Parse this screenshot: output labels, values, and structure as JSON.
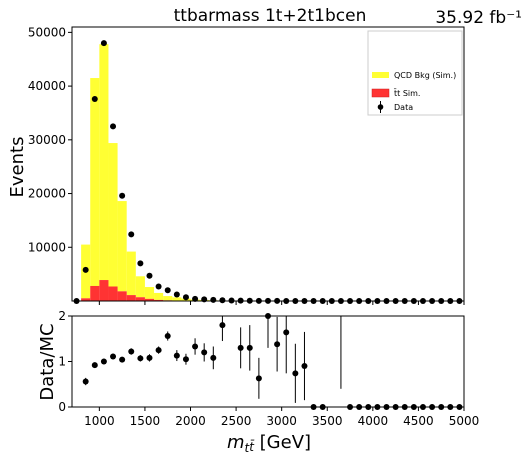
{
  "chart_data": [
    {
      "type": "bar",
      "title": "ttbarmass  1t+2t1bcen",
      "lumi_label": "35.92 fb⁻¹",
      "ylabel": "Events",
      "xlim": [
        700,
        5000
      ],
      "ylim": [
        0,
        51000
      ],
      "yticks": [
        10000,
        20000,
        30000,
        40000,
        50000
      ],
      "bin_edges": [
        700,
        800,
        900,
        1000,
        1100,
        1200,
        1300,
        1400,
        1500,
        1600,
        1700,
        1800,
        1900,
        2000,
        2100,
        2200,
        2300,
        2400,
        2500,
        2600,
        2700,
        2800,
        2900,
        3000,
        3100,
        3200,
        3300,
        3400,
        3500,
        3600,
        3700,
        3800,
        3900,
        4000,
        4100,
        4200,
        4300,
        4400,
        4500,
        4600,
        4700,
        4800,
        4900,
        5000
      ],
      "legend": {
        "placement": "top-right",
        "entries": [
          {
            "label": "QCD Bkg (Sim.)",
            "color": "#ffff33"
          },
          {
            "label": "t̄t Sim.",
            "color": "#ff3333"
          },
          {
            "label": "Data",
            "color": "#000000"
          }
        ]
      },
      "series": [
        {
          "name": "QCD Bkg (Sim.)",
          "color": "#ffff33",
          "values": [
            0,
            10000,
            38700,
            43900,
            26700,
            16800,
            8100,
            3900,
            2200,
            1300,
            800,
            600,
            400,
            250,
            180,
            120,
            80,
            60,
            40,
            30,
            20,
            15,
            10,
            8,
            6,
            5,
            4,
            3,
            3,
            2,
            2,
            1,
            1,
            1,
            1,
            0,
            0,
            0,
            0,
            0,
            0,
            0,
            0
          ]
        },
        {
          "name": "t̄t Sim.",
          "color": "#ff3333",
          "values": [
            0,
            500,
            2800,
            3900,
            2700,
            1800,
            1100,
            700,
            400,
            200,
            120,
            80,
            50,
            30,
            20,
            12,
            8,
            5,
            3,
            2,
            1,
            1,
            1,
            0,
            0,
            0,
            0,
            0,
            0,
            0,
            0,
            0,
            0,
            0,
            0,
            0,
            0,
            0,
            0,
            0,
            0,
            0,
            0
          ]
        },
        {
          "name": "Data",
          "color": "#000000",
          "x": [
            750,
            850,
            950,
            1050,
            1150,
            1250,
            1350,
            1450,
            1550,
            1650,
            1750,
            1850,
            1950,
            2050,
            2150,
            2250,
            2350,
            2450,
            2550,
            2650,
            2750,
            2850,
            2950,
            3050,
            3150,
            3250,
            3350,
            3450,
            3550,
            3650,
            3750,
            3850,
            3950,
            4050,
            4150,
            4250,
            4350,
            4450,
            4550,
            4650,
            4750,
            4850,
            4950
          ],
          "values": [
            0,
            5800,
            37600,
            48000,
            32500,
            19600,
            12400,
            7000,
            4700,
            2700,
            2000,
            1200,
            700,
            400,
            300,
            200,
            150,
            100,
            60,
            40,
            25,
            20,
            15,
            10,
            8,
            5,
            0,
            0,
            0,
            0,
            0,
            0,
            0,
            0,
            0,
            0,
            0,
            0,
            0,
            0,
            0,
            0,
            0
          ]
        }
      ]
    },
    {
      "type": "scatter",
      "ylabel": "Data/MC",
      "xlabel": "m_{t̄t} [GeV]",
      "xlim": [
        700,
        5000
      ],
      "ylim": [
        0,
        2
      ],
      "xticks": [
        1000,
        1500,
        2000,
        2500,
        3000,
        3500,
        4000,
        4500,
        5000
      ],
      "yticks": [
        0,
        1,
        2
      ],
      "x": [
        850,
        950,
        1050,
        1150,
        1250,
        1350,
        1450,
        1550,
        1650,
        1750,
        1850,
        1950,
        2050,
        2150,
        2250,
        2350,
        2450,
        2550,
        2650,
        2750,
        2850,
        2950,
        3050,
        3150,
        3250,
        3350,
        3450,
        3550,
        3650,
        3750,
        3850,
        3950,
        4050,
        4150,
        4250,
        4350,
        4450,
        4550,
        4650,
        4750,
        4850,
        4950
      ],
      "values": [
        0.56,
        0.92,
        1.0,
        1.11,
        1.04,
        1.22,
        1.07,
        1.08,
        1.25,
        1.56,
        1.13,
        1.05,
        1.33,
        1.2,
        1.08,
        1.8,
        null,
        1.3,
        1.3,
        0.63,
        2.0,
        1.38,
        1.64,
        0.74,
        0.9,
        0,
        0,
        null,
        null,
        0,
        0,
        0,
        0,
        0,
        0,
        0,
        0,
        0,
        0,
        0,
        0,
        0
      ],
      "errors": [
        0.08,
        0.06,
        0.06,
        0.06,
        0.06,
        0.07,
        0.07,
        0.08,
        0.08,
        0.1,
        0.12,
        0.12,
        0.18,
        0.2,
        0.25,
        0.35,
        null,
        0.45,
        0.5,
        0.45,
        0.7,
        0.6,
        0.9,
        0.65,
        0.75,
        0,
        0,
        null,
        null,
        0,
        0,
        0,
        0,
        0,
        0,
        0,
        0,
        0,
        0,
        0,
        0,
        0
      ],
      "vertical_lines": [
        {
          "x": 3650,
          "from": 0.4,
          "to": 2.0
        }
      ]
    }
  ]
}
